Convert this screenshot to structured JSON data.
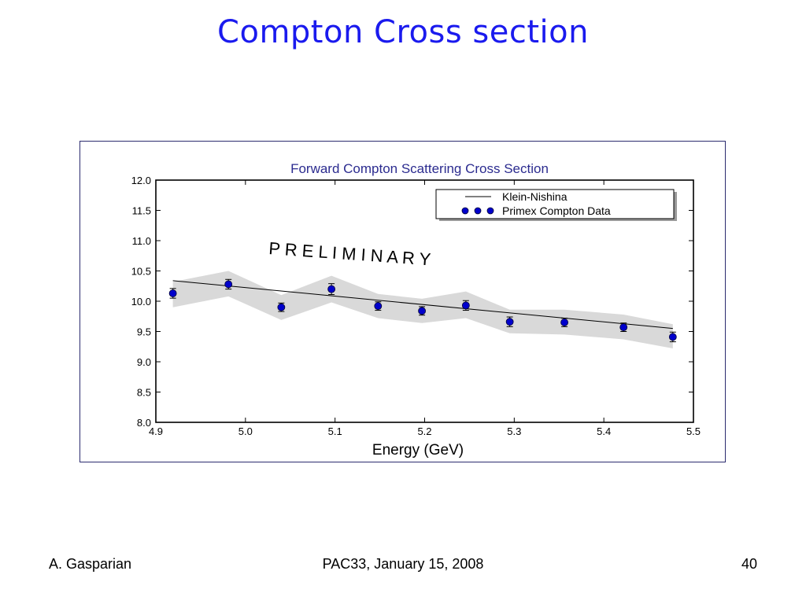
{
  "slide": {
    "title": "Compton Cross section",
    "footer_left": "A. Gasparian",
    "footer_center": "PAC33, January 15, 2008",
    "footer_right": "40"
  },
  "chart_data": {
    "type": "scatter",
    "title": "Forward Compton Scattering Cross Section",
    "xlabel": "Energy (GeV)",
    "ylabel": "",
    "xlim": [
      4.9,
      5.5
    ],
    "ylim": [
      8.0,
      12.0
    ],
    "x_ticks": [
      "4.9",
      "5.0",
      "5.1",
      "5.2",
      "5.3",
      "5.4",
      "5.5"
    ],
    "y_ticks": [
      "8.0",
      "8.5",
      "9.0",
      "9.5",
      "10.0",
      "10.5",
      "11.0",
      "11.5",
      "12.0"
    ],
    "annotation": "P R E L I M I N A R Y",
    "legend_position": "top-right",
    "series": [
      {
        "name": "Primex Compton Data",
        "kind": "points",
        "color": "#0000cc",
        "x": [
          4.919,
          4.981,
          5.04,
          5.096,
          5.148,
          5.197,
          5.246,
          5.295,
          5.356,
          5.422,
          5.477
        ],
        "y": [
          10.13,
          10.28,
          9.9,
          10.2,
          9.92,
          9.84,
          9.93,
          9.66,
          9.65,
          9.57,
          9.41
        ],
        "err": [
          0.08,
          0.08,
          0.07,
          0.09,
          0.07,
          0.07,
          0.08,
          0.08,
          0.07,
          0.07,
          0.08
        ]
      },
      {
        "name": "Klein-Nishina",
        "kind": "line",
        "color": "#000000",
        "x": [
          4.919,
          5.477
        ],
        "y": [
          10.34,
          9.55
        ]
      }
    ],
    "uncertainty_band": {
      "color": "#d9d9d9",
      "x": [
        4.919,
        4.981,
        5.04,
        5.096,
        5.148,
        5.197,
        5.246,
        5.295,
        5.356,
        5.422,
        5.477
      ],
      "upper": [
        10.32,
        10.5,
        10.1,
        10.42,
        10.12,
        10.04,
        10.16,
        9.86,
        9.86,
        9.78,
        9.62
      ],
      "lower": [
        9.9,
        10.08,
        9.69,
        9.98,
        9.72,
        9.64,
        9.72,
        9.47,
        9.45,
        9.37,
        9.22
      ]
    }
  }
}
